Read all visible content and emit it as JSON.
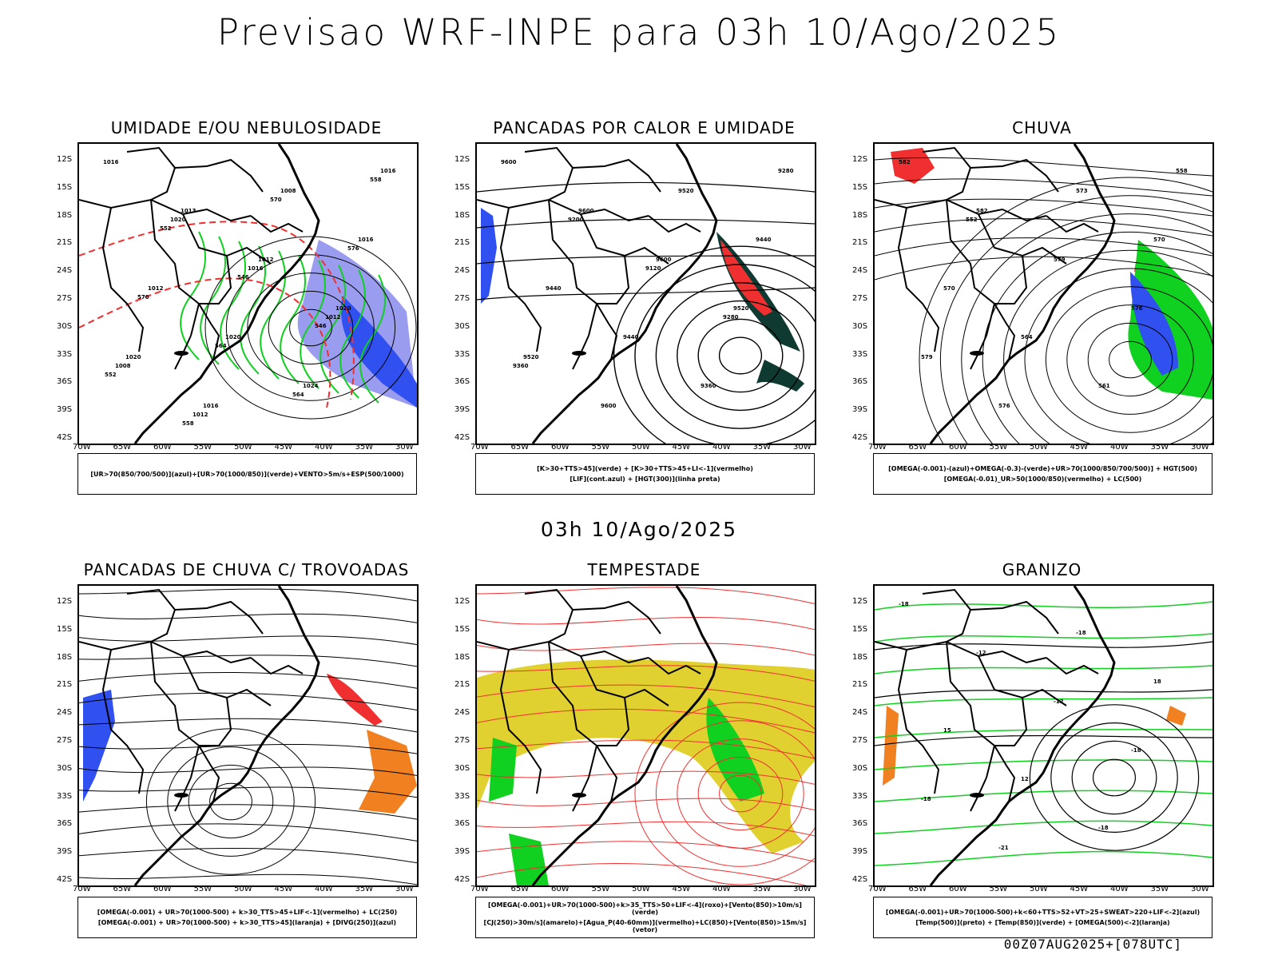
{
  "title": "Previsao WRF-INPE  para 03h 10/Ago/2025",
  "mid_title": "03h 10/Ago/2025",
  "footer": "00Z07AUG2025+[078UTC]",
  "axes": {
    "lat_labels": [
      "12S",
      "15S",
      "18S",
      "21S",
      "24S",
      "27S",
      "30S",
      "33S",
      "36S",
      "39S",
      "42S"
    ],
    "lon_labels": [
      "70W",
      "65W",
      "60W",
      "55W",
      "50W",
      "45W",
      "40W",
      "35W",
      "30W"
    ]
  },
  "colors": {
    "blue": "#3050f0",
    "green": "#10d020",
    "red": "#f03030",
    "darkgreen": "#0f3a32",
    "yellow": "#e0d030",
    "orange": "#f08020",
    "lavender": "#9a9cf0"
  },
  "panels": [
    {
      "id": "umidade",
      "title": "UMIDADE E/OU NEBULOSIDADE",
      "legend": [
        "[UR>70(850/700/500)](azul)+[UR>70(1000/850)](verde)+VENTO>5m/s+ESP(500/1000)"
      ],
      "labels": [
        "1016",
        "1013",
        "1012",
        "1020",
        "1020",
        "1016",
        "1008",
        "1016",
        "1012",
        "1020",
        "1024",
        "1016",
        "1020",
        "1016",
        "1012",
        "1008",
        "1012",
        "570",
        "576",
        "570",
        "564",
        "564",
        "558",
        "552",
        "546",
        "546",
        "552",
        "558"
      ]
    },
    {
      "id": "pancadas_calor",
      "title": "PANCADAS POR CALOR E UMIDADE",
      "legend": [
        "[K>30+TTS>45](verde) + [K>30+TTS>45+LI<-1](vermelho)",
        "[LIF](cont.azul) + [HGT(300)](linha preta)"
      ],
      "labels": [
        "9600",
        "9600",
        "9600",
        "9520",
        "9520",
        "9600",
        "9520",
        "9440",
        "9440",
        "9440",
        "9360",
        "9280",
        "9200",
        "9120",
        "9280",
        "9360"
      ]
    },
    {
      "id": "chuva",
      "title": "CHUVA",
      "legend": [
        "[OMEGA(-0.001)-(azul)+OMEGA(-0.3)-(verde)+UR>70(1000/850/700/500)] + HGT(500)",
        "[OMEGA(-0.01)_UR>50(1000/850)(vermelho) + LC(500)"
      ],
      "labels": [
        "582",
        "582",
        "579",
        "576",
        "579",
        "576",
        "573",
        "570",
        "570",
        "564",
        "561",
        "558",
        "552"
      ]
    },
    {
      "id": "pancadas_trovoadas",
      "title": "PANCADAS DE CHUVA C/ TROVOADAS",
      "legend": [
        "[OMEGA(-0.001) + UR>70(1000-500) + k>30_TTS>45+LIF<-1](vermelho) + LC(250)",
        "[OMEGA(-0.001) + UR>70(1000-500) + k>30_TTS>45](laranja) + [DIVG(250)](azul)"
      ],
      "labels": []
    },
    {
      "id": "tempestade",
      "title": "TEMPESTADE",
      "legend": [
        "[OMEGA(-0.001)+UR>70(1000-500)+k>35_TTS>50+LIF<-4](roxo)+[Vento(850)>10m/s](verde)",
        "[CJ(250)>30m/s](amarelo)+[Agua_P(40-60mm)](vermelho)+LC(850)+[Vento(850)>15m/s](vetor)"
      ],
      "labels": []
    },
    {
      "id": "granizo",
      "title": "GRANIZO",
      "legend": [
        "[OMEGA(-0.001)+UR>70(1000-500)+k<60+TTS>52+VT>25+SWEAT>220+LIF<-2](azul)",
        "[Temp(500)](preto) + [Temp(850)](verde) + [OMEGA(500)<-2](laranja)"
      ],
      "labels": [
        "-18",
        "-12",
        "-12",
        "-18",
        "-18",
        "-21",
        "-18",
        "18",
        "15",
        "12",
        "-18"
      ]
    }
  ]
}
